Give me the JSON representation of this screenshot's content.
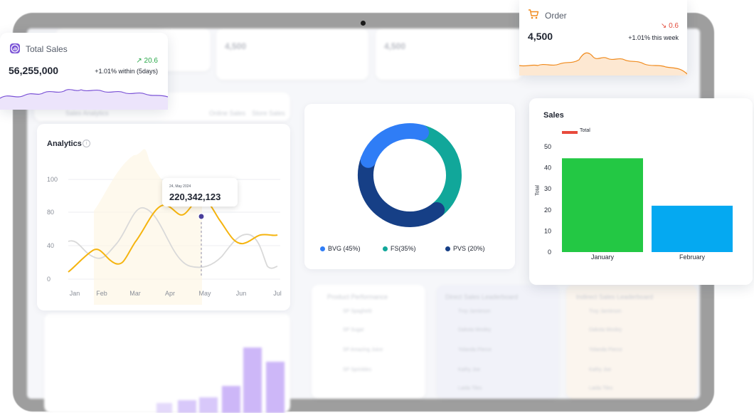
{
  "total_sales": {
    "title": "Total Sales",
    "value": "56,255,000",
    "change": "20.6",
    "note": "+1.01% within (5days)",
    "color": "#7b53d6"
  },
  "order": {
    "title": "Order",
    "value": "4,500",
    "change": "0.6",
    "note": "+1.01% this week",
    "color": "#f08a1c"
  },
  "analytics": {
    "title": "Analytics",
    "y_ticks": [
      "100",
      "80",
      "40",
      "0"
    ],
    "months": [
      "Jan",
      "Feb",
      "Mar",
      "Apr",
      "May",
      "Jun",
      "Jul"
    ],
    "tooltip_date": "24, May 2024",
    "tooltip_value": "220,342,123",
    "line_color": "#f5b40f"
  },
  "donut": {
    "segments": [
      {
        "label": "BVG (45%)",
        "color": "#2f7df6"
      },
      {
        "label": "FS(35%)",
        "color": "#11a79a"
      },
      {
        "label": "PVS (20%)",
        "color": "#163f86"
      }
    ]
  },
  "sales": {
    "title": "Sales",
    "legend": "Total",
    "legend_color": "#e84a3c",
    "ylabel": "Total",
    "y_ticks": [
      "50",
      "40",
      "30",
      "20",
      "10",
      "0"
    ]
  },
  "chart_data": {
    "type": "bar",
    "title": "Sales",
    "categories": [
      "January",
      "February"
    ],
    "series": [
      {
        "name": "Total",
        "values": [
          44.5,
          22
        ]
      }
    ],
    "colors": [
      "#23c844",
      "#05a9f1"
    ],
    "xlabel": "",
    "ylabel": "Total",
    "ylim": [
      0,
      50
    ],
    "legend": "top-left"
  },
  "background": {
    "sales_analytics": "Sales Analytics",
    "legend_a": "Online Sales",
    "legend_b": "Store Sales",
    "product_performance": "Product Performance",
    "leaderboard_a": "Direct Sales Leaderboard",
    "leaderboard_b": "Indirect Sales Leaderboard",
    "stat_a": "4,500",
    "stat_b": "4,500",
    "products": [
      "SP Spaghetti",
      "SP Sugar",
      "SP Amazing Juice",
      "SP Sprinkles"
    ],
    "names_a": [
      "Troy Jamieson",
      "Dakota Mosley",
      "Yolanda Pierce",
      "Kathy Joe",
      "Laida Tiles"
    ],
    "names_b": [
      "Troy Jamieson",
      "Dakota Mosley",
      "Yolanda Pierce",
      "Kathy Joe",
      "Laida Tiles"
    ]
  }
}
